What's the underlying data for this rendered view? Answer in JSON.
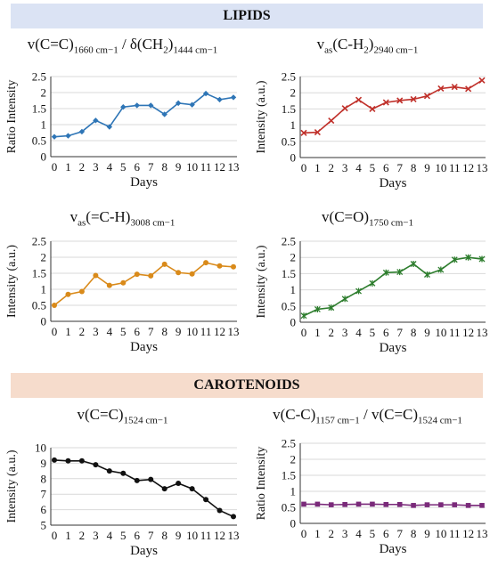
{
  "sections": {
    "lipids": "LIPIDS",
    "carotenoids": "CAROTENOIDS"
  },
  "chart_data": [
    {
      "type": "line",
      "title_main": "v(C=C)",
      "title_sub1": "1660 cm−1",
      "title_mid": " / δ(CH",
      "title_sub2": "2",
      "title_end": ")",
      "title_sub3": "1444 cm−1",
      "xlabel": "Days",
      "ylabel": "Ratio Intensity",
      "x": [
        0,
        1,
        2,
        3,
        4,
        5,
        6,
        7,
        8,
        9,
        10,
        11,
        12,
        13
      ],
      "y_ticks": [
        "0",
        "0.5",
        "1",
        "1.5",
        "2",
        "2.5"
      ],
      "ylim": [
        0,
        2.5
      ],
      "series": [
        {
          "values": [
            0.62,
            0.65,
            0.78,
            1.13,
            0.93,
            1.55,
            1.6,
            1.6,
            1.32,
            1.67,
            1.62,
            1.97,
            1.78,
            1.85
          ],
          "color": "#2e75b6",
          "marker": "diamond"
        }
      ]
    },
    {
      "type": "line",
      "title_main": "v",
      "title_sub1": "as",
      "title_mid": "(C-H",
      "title_sub2": "2",
      "title_end": ")",
      "title_sub3": "2940 cm−1",
      "xlabel": "Days",
      "ylabel": "Intensity (a.u.)",
      "x": [
        0,
        1,
        2,
        3,
        4,
        5,
        6,
        7,
        8,
        9,
        10,
        11,
        12,
        13
      ],
      "y_ticks": [
        "0",
        "0.5",
        "1",
        "1.5",
        "2",
        "2.5"
      ],
      "ylim": [
        0,
        2.5
      ],
      "series": [
        {
          "values": [
            0.76,
            0.78,
            1.14,
            1.52,
            1.78,
            1.5,
            1.7,
            1.76,
            1.8,
            1.9,
            2.13,
            2.18,
            2.12,
            2.38
          ],
          "color": "#c0302a",
          "marker": "x"
        }
      ]
    },
    {
      "type": "line",
      "title_main": "v",
      "title_sub1": "as",
      "title_mid": "(=C-H)",
      "title_sub2": "",
      "title_end": "",
      "title_sub3": "3008 cm−1",
      "xlabel": "Days",
      "ylabel": "Intensity (a.u.)",
      "x": [
        0,
        1,
        2,
        3,
        4,
        5,
        6,
        7,
        8,
        9,
        10,
        11,
        12,
        13
      ],
      "y_ticks": [
        "0",
        "0.5",
        "1",
        "1.5",
        "2",
        "2.5"
      ],
      "ylim": [
        0,
        2.5
      ],
      "series": [
        {
          "values": [
            0.5,
            0.84,
            0.93,
            1.43,
            1.12,
            1.2,
            1.47,
            1.42,
            1.78,
            1.52,
            1.48,
            1.83,
            1.73,
            1.7
          ],
          "color": "#d98a1a",
          "marker": "circle"
        }
      ]
    },
    {
      "type": "line",
      "title_main": "v(C=O)",
      "title_sub1": "",
      "title_mid": "",
      "title_sub2": "",
      "title_end": "",
      "title_sub3": "1750 cm−1",
      "xlabel": "Days",
      "ylabel": "Intensity (a.u.)",
      "x": [
        0,
        1,
        2,
        3,
        4,
        5,
        6,
        7,
        8,
        9,
        10,
        11,
        12,
        13
      ],
      "y_ticks": [
        "0",
        "0.5",
        "1",
        "1.5",
        "2",
        "2.5"
      ],
      "ylim": [
        0,
        2.5
      ],
      "series": [
        {
          "values": [
            0.2,
            0.4,
            0.45,
            0.72,
            0.96,
            1.2,
            1.53,
            1.55,
            1.8,
            1.47,
            1.62,
            1.93,
            2.0,
            1.95
          ],
          "color": "#2d7d2d",
          "marker": "star"
        }
      ]
    },
    {
      "type": "line",
      "title_main": "v(C=C)",
      "title_sub1": "",
      "title_mid": "",
      "title_sub2": "",
      "title_end": "",
      "title_sub3": "1524 cm−1",
      "xlabel": "Days",
      "ylabel": "Intensity (a.u.)",
      "x": [
        0,
        1,
        2,
        3,
        4,
        5,
        6,
        7,
        8,
        9,
        10,
        11,
        12,
        13
      ],
      "y_ticks": [
        "5",
        "6",
        "7",
        "8",
        "9",
        "10"
      ],
      "ylim": [
        5,
        10
      ],
      "series": [
        {
          "values": [
            9.2,
            9.15,
            9.15,
            8.9,
            8.5,
            8.35,
            7.88,
            7.95,
            7.35,
            7.7,
            7.35,
            6.65,
            5.95,
            5.55
          ],
          "color": "#111111",
          "marker": "circle"
        }
      ]
    },
    {
      "type": "line",
      "title_main": "v(C-C)",
      "title_sub1": "1157 cm−1",
      "title_mid": " / v(C=C)",
      "title_sub2": "",
      "title_end": "",
      "title_sub3": "1524 cm−1",
      "xlabel": "Days",
      "ylabel": "Ratio Intensity",
      "x": [
        0,
        1,
        2,
        3,
        4,
        5,
        6,
        7,
        8,
        9,
        10,
        11,
        12,
        13
      ],
      "y_ticks": [
        "0",
        "0.5",
        "1",
        "1.5",
        "2",
        "2.5"
      ],
      "ylim": [
        0,
        2.5
      ],
      "series": [
        {
          "values": [
            0.6,
            0.6,
            0.58,
            0.59,
            0.6,
            0.6,
            0.59,
            0.59,
            0.56,
            0.58,
            0.58,
            0.58,
            0.56,
            0.56
          ],
          "color": "#7a2a7a",
          "marker": "square"
        }
      ]
    }
  ]
}
